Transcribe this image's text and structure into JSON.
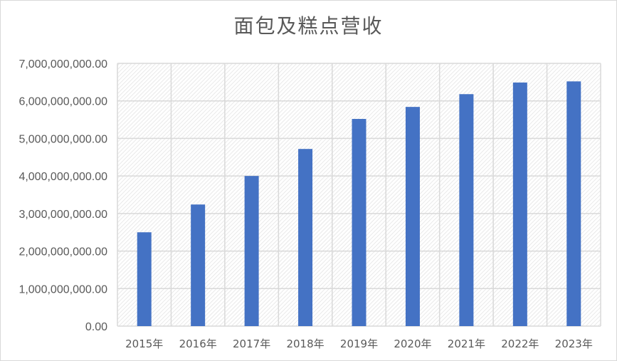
{
  "chart_data": {
    "type": "bar",
    "title": "面包及糕点营收",
    "xlabel": "",
    "ylabel": "",
    "categories": [
      "2015年",
      "2016年",
      "2017年",
      "2018年",
      "2019年",
      "2020年",
      "2021年",
      "2022年",
      "2023年"
    ],
    "values": [
      2500000000,
      3240000000,
      4000000000,
      4720000000,
      5520000000,
      5840000000,
      6180000000,
      6490000000,
      6520000000
    ],
    "ylim": [
      0,
      7000000000
    ],
    "yticks": [
      "0.00",
      "1,000,000,000.00",
      "2,000,000,000.00",
      "3,000,000,000.00",
      "4,000,000,000.00",
      "5,000,000,000.00",
      "6,000,000,000.00",
      "7,000,000,000.00"
    ],
    "grid": true,
    "legend": "none",
    "bar_color": "#4472c4",
    "grid_color": "#d9d9d9"
  }
}
